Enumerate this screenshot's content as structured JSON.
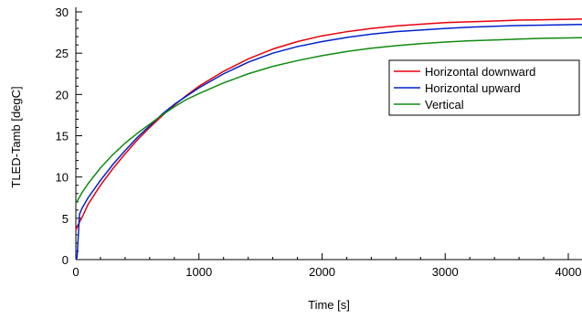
{
  "chart_data": {
    "type": "line",
    "title": "",
    "xlabel": "Time [s]",
    "ylabel": "TLED-Tamb [degC]",
    "xlim": [
      0,
      4200
    ],
    "ylim": [
      0,
      30
    ],
    "x_ticks": [
      0,
      1000,
      2000,
      3000,
      4000
    ],
    "y_ticks": [
      0,
      5,
      10,
      15,
      20,
      25,
      30
    ],
    "x_tick_labels": [
      "0",
      "1000",
      "2000",
      "3000",
      "4000"
    ],
    "y_tick_labels": [
      "0",
      "5",
      "10",
      "15",
      "20",
      "25",
      "30"
    ],
    "grid": false,
    "legend_position": "right",
    "series": [
      {
        "name": "Horizontal downward",
        "color": "#e8000b",
        "x": [
          0,
          10,
          50,
          100,
          200,
          300,
          400,
          500,
          600,
          700,
          800,
          900,
          1000,
          1200,
          1400,
          1600,
          1800,
          2000,
          2200,
          2400,
          2600,
          2800,
          3000,
          3200,
          3400,
          3600,
          3800,
          4000,
          4200
        ],
        "y": [
          3.5,
          4.0,
          5.1,
          6.7,
          9.0,
          11.0,
          12.8,
          14.5,
          16.0,
          17.4,
          18.7,
          19.9,
          21.0,
          22.8,
          24.3,
          25.5,
          26.4,
          27.1,
          27.6,
          28.0,
          28.3,
          28.5,
          28.7,
          28.8,
          28.9,
          29.0,
          29.05,
          29.1,
          29.15
        ]
      },
      {
        "name": "Horizontal upward",
        "color": "#0022cc",
        "x": [
          0,
          10,
          30,
          50,
          100,
          200,
          300,
          400,
          500,
          600,
          700,
          800,
          900,
          1000,
          1200,
          1400,
          1600,
          1800,
          2000,
          2200,
          2400,
          2600,
          2800,
          3000,
          3200,
          3400,
          3600,
          3800,
          4000,
          4200
        ],
        "y": [
          0,
          0.3,
          5.5,
          6.2,
          7.5,
          9.6,
          11.5,
          13.2,
          14.8,
          16.2,
          17.6,
          18.8,
          19.8,
          20.8,
          22.5,
          23.9,
          25.0,
          25.8,
          26.4,
          26.9,
          27.3,
          27.6,
          27.8,
          28.0,
          28.15,
          28.25,
          28.35,
          28.4,
          28.45,
          28.5
        ]
      },
      {
        "name": "Vertical",
        "color": "#118a11",
        "x": [
          0,
          50,
          100,
          200,
          300,
          400,
          500,
          600,
          700,
          800,
          900,
          1000,
          1200,
          1400,
          1600,
          1800,
          2000,
          2200,
          2400,
          2600,
          2800,
          3000,
          3200,
          3400,
          3600,
          3800,
          4000,
          4200
        ],
        "y": [
          6.8,
          8.1,
          9.2,
          11.1,
          12.7,
          14.1,
          15.3,
          16.4,
          17.5,
          18.5,
          19.4,
          20.1,
          21.4,
          22.5,
          23.4,
          24.1,
          24.7,
          25.2,
          25.6,
          25.9,
          26.15,
          26.35,
          26.5,
          26.6,
          26.7,
          26.8,
          26.85,
          26.9
        ]
      }
    ]
  }
}
